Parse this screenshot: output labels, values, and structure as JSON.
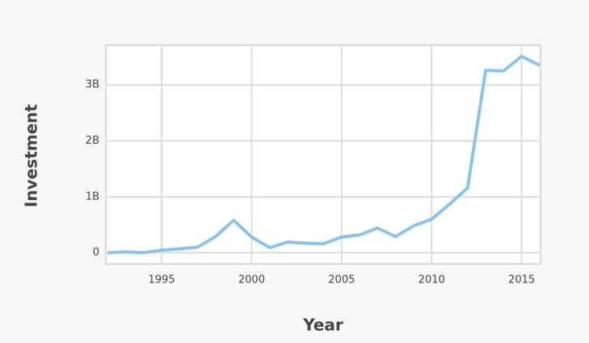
{
  "chart_data": {
    "type": "line",
    "x_label": "Year",
    "y_label": "Investment",
    "x": [
      1992,
      1993,
      1994,
      1995,
      1996,
      1997,
      1998,
      1999,
      2000,
      2001,
      2002,
      2003,
      2004,
      2005,
      2006,
      2007,
      2008,
      2009,
      2010,
      2011,
      2012,
      2013,
      2014,
      2015,
      2016
    ],
    "series": [
      {
        "color": "#8bc4e8",
        "values": [
          0,
          15000000,
          0,
          45000000,
          70000000,
          100000000,
          290000000,
          580000000,
          280000000,
          90000000,
          190000000,
          170000000,
          160000000,
          280000000,
          320000000,
          440000000,
          290000000,
          480000000,
          600000000,
          870000000,
          1160000000,
          3260000000,
          3250000000,
          3510000000,
          3350000000
        ]
      }
    ],
    "xlim": [
      1991.9,
      2016.05
    ],
    "xticks": [
      1995,
      2000,
      2005,
      2010,
      2015
    ],
    "ylim": [
      -200000000,
      3710000000
    ],
    "yticks": [
      0,
      {
        "value": 1000000000,
        "label": "1B"
      },
      {
        "value": 2000000000,
        "label": "2B"
      },
      {
        "value": 3000000000,
        "label": "3B"
      }
    ],
    "grid": true
  }
}
